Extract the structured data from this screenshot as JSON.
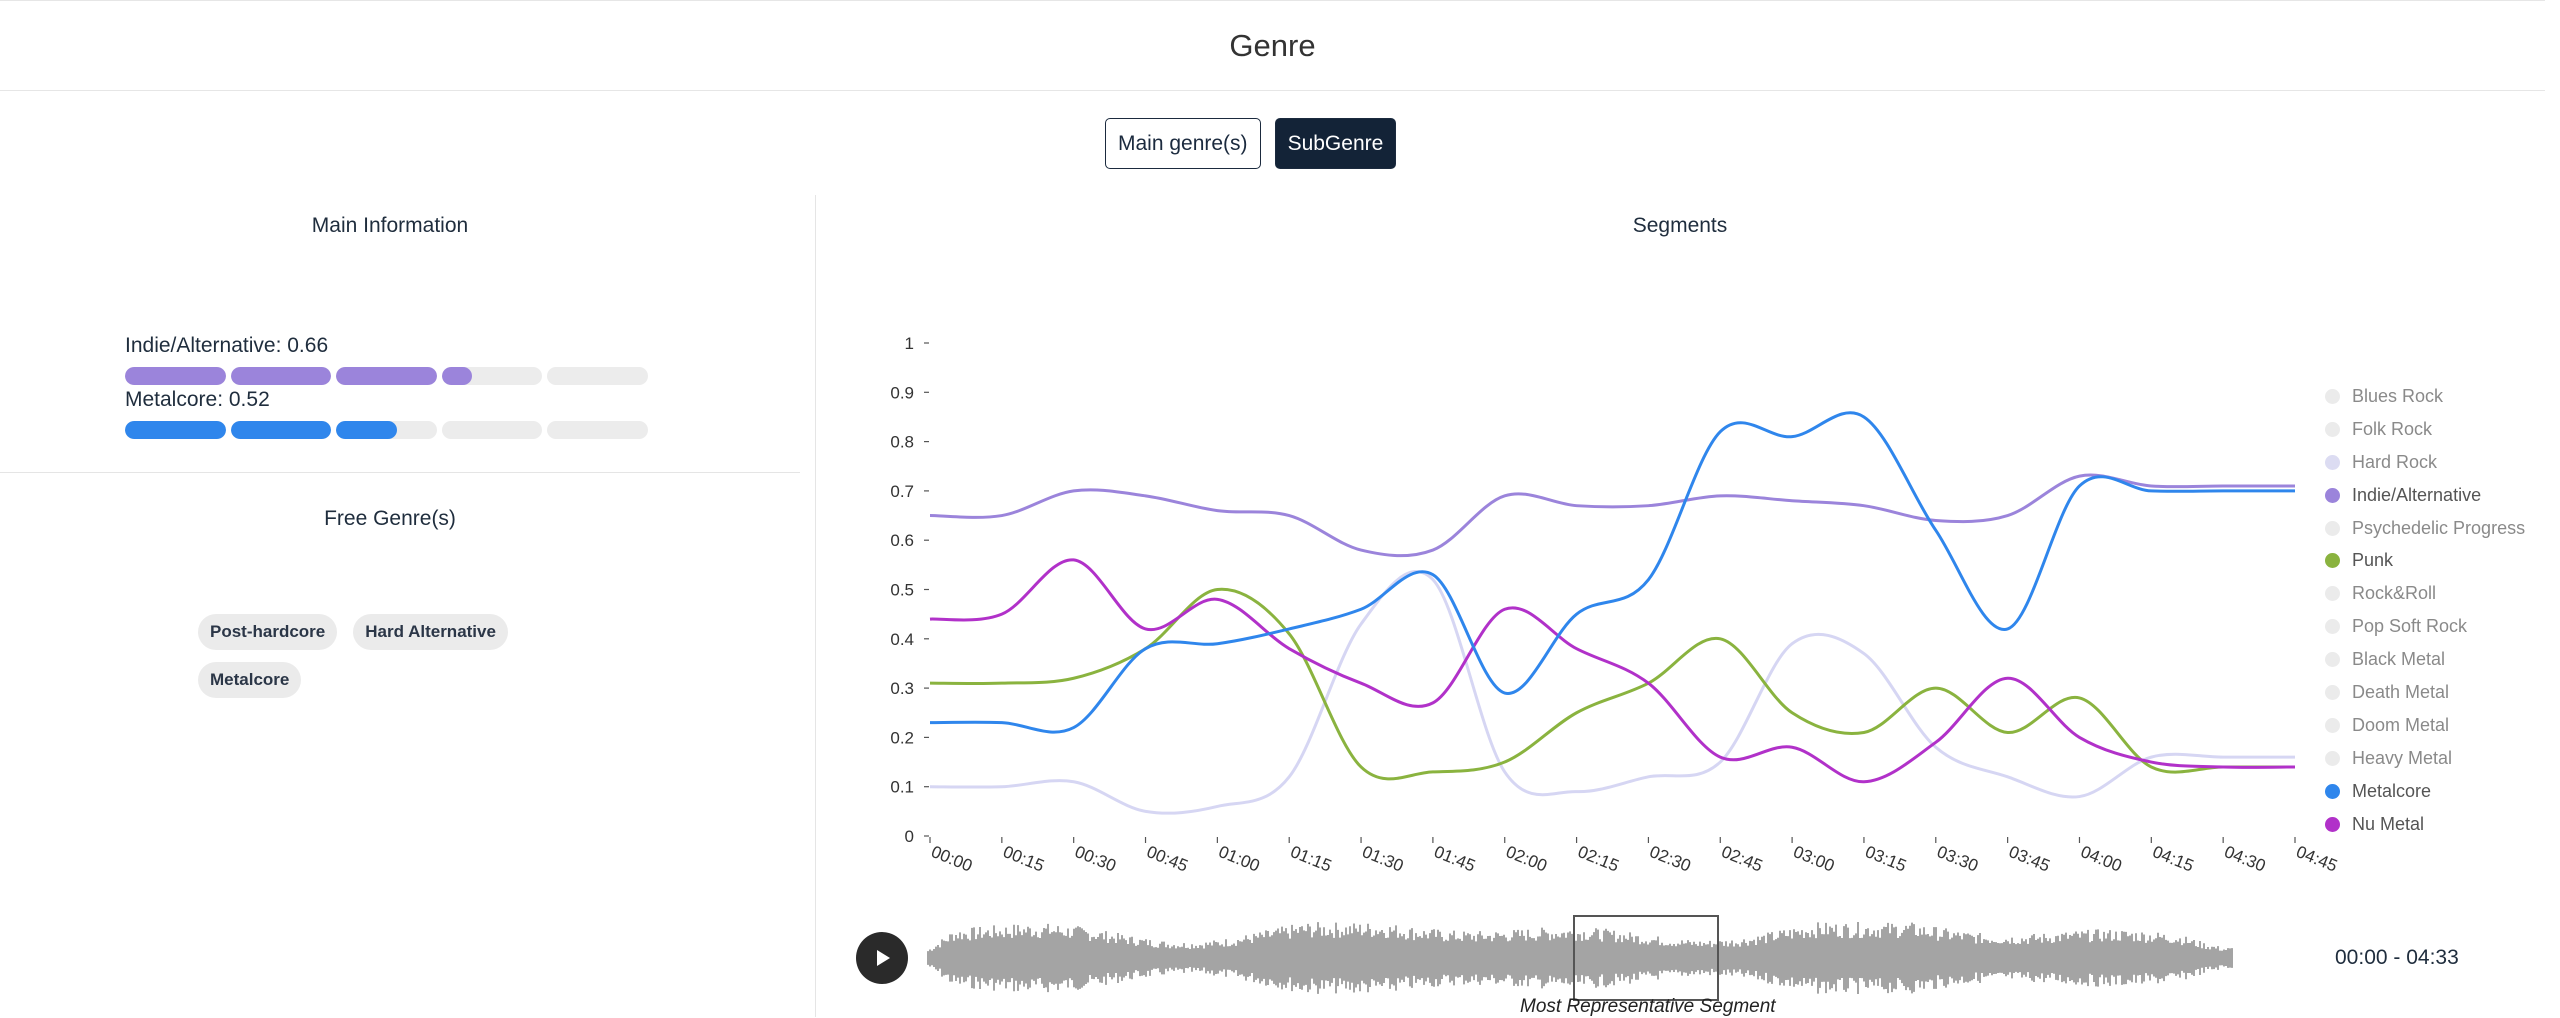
{
  "header": {
    "title": "Genre"
  },
  "toggle": {
    "main_label": "Main genre(s)",
    "sub_label": "SubGenre",
    "active": "SubGenre"
  },
  "main_info": {
    "title": "Main Information",
    "genres": [
      {
        "label": "Indie/Alternative: 0.66",
        "value": 0.66,
        "color": "#9b84db"
      },
      {
        "label": "Metalcore: 0.52",
        "value": 0.52,
        "color": "#2f86ec"
      }
    ]
  },
  "free_genres": {
    "title": "Free Genre(s)",
    "tags": [
      "Post-hardcore",
      "Hard Alternative",
      "Metalcore"
    ]
  },
  "segments": {
    "title": "Segments"
  },
  "player": {
    "time_range": "00:00 - 04:33",
    "representative_label": "Most Representative Segment",
    "play_icon": "play-icon"
  },
  "chart_data": {
    "type": "line",
    "title": "Segments",
    "xlabel": "",
    "ylabel": "",
    "ylim": [
      0,
      1
    ],
    "yticks": [
      "0",
      "0.1",
      "0.2",
      "0.3",
      "0.4",
      "0.5",
      "0.6",
      "0.7",
      "0.8",
      "0.9",
      "1"
    ],
    "x": [
      "00:00",
      "00:15",
      "00:30",
      "00:45",
      "01:00",
      "01:15",
      "01:30",
      "01:45",
      "02:00",
      "02:15",
      "02:30",
      "02:45",
      "03:00",
      "03:15",
      "03:30",
      "03:45",
      "04:00",
      "04:15",
      "04:30",
      "04:45"
    ],
    "legend_position": "right",
    "legend": [
      {
        "name": "Blues Rock",
        "color": "#ebebeb",
        "active": false
      },
      {
        "name": "Folk Rock",
        "color": "#ebebeb",
        "active": false
      },
      {
        "name": "Hard Rock",
        "color": "#dcdcf2",
        "active": false
      },
      {
        "name": "Indie/Alternative",
        "color": "#9b84db",
        "active": true
      },
      {
        "name": "Psychedelic Progressive",
        "color": "#ebebeb",
        "active": false
      },
      {
        "name": "Punk",
        "color": "#8ab33f",
        "active": true
      },
      {
        "name": "Rock&Roll",
        "color": "#ebebeb",
        "active": false
      },
      {
        "name": "Pop Soft Rock",
        "color": "#ebebeb",
        "active": false
      },
      {
        "name": "Black Metal",
        "color": "#ebebeb",
        "active": false
      },
      {
        "name": "Death Metal",
        "color": "#ebebeb",
        "active": false
      },
      {
        "name": "Doom Metal",
        "color": "#ebebeb",
        "active": false
      },
      {
        "name": "Heavy Metal",
        "color": "#ebebeb",
        "active": false
      },
      {
        "name": "Metalcore",
        "color": "#2f86ec",
        "active": true
      },
      {
        "name": "Nu Metal",
        "color": "#b131c9",
        "active": true
      }
    ],
    "series": [
      {
        "name": "Hard Rock",
        "color": "#d6d6f3",
        "values": [
          0.1,
          0.1,
          0.11,
          0.05,
          0.06,
          0.12,
          0.43,
          0.52,
          0.13,
          0.09,
          0.12,
          0.15,
          0.39,
          0.37,
          0.18,
          0.12,
          0.08,
          0.16,
          0.16,
          0.16
        ]
      },
      {
        "name": "Indie/Alternative",
        "color": "#9b84db",
        "values": [
          0.65,
          0.65,
          0.7,
          0.69,
          0.66,
          0.65,
          0.58,
          0.58,
          0.69,
          0.67,
          0.67,
          0.69,
          0.68,
          0.67,
          0.64,
          0.65,
          0.73,
          0.71,
          0.71,
          0.71
        ]
      },
      {
        "name": "Punk",
        "color": "#8ab33f",
        "values": [
          0.31,
          0.31,
          0.32,
          0.38,
          0.5,
          0.41,
          0.14,
          0.13,
          0.15,
          0.25,
          0.31,
          0.4,
          0.25,
          0.21,
          0.3,
          0.21,
          0.28,
          0.14,
          0.14,
          0.14
        ]
      },
      {
        "name": "Nu Metal",
        "color": "#b131c9",
        "values": [
          0.44,
          0.45,
          0.56,
          0.42,
          0.48,
          0.38,
          0.31,
          0.27,
          0.46,
          0.38,
          0.31,
          0.16,
          0.18,
          0.11,
          0.19,
          0.32,
          0.2,
          0.15,
          0.14,
          0.14
        ]
      },
      {
        "name": "Metalcore",
        "color": "#2f86ec",
        "values": [
          0.23,
          0.23,
          0.22,
          0.38,
          0.39,
          0.42,
          0.46,
          0.53,
          0.29,
          0.45,
          0.52,
          0.82,
          0.81,
          0.85,
          0.62,
          0.42,
          0.71,
          0.7,
          0.7,
          0.7
        ]
      }
    ]
  }
}
